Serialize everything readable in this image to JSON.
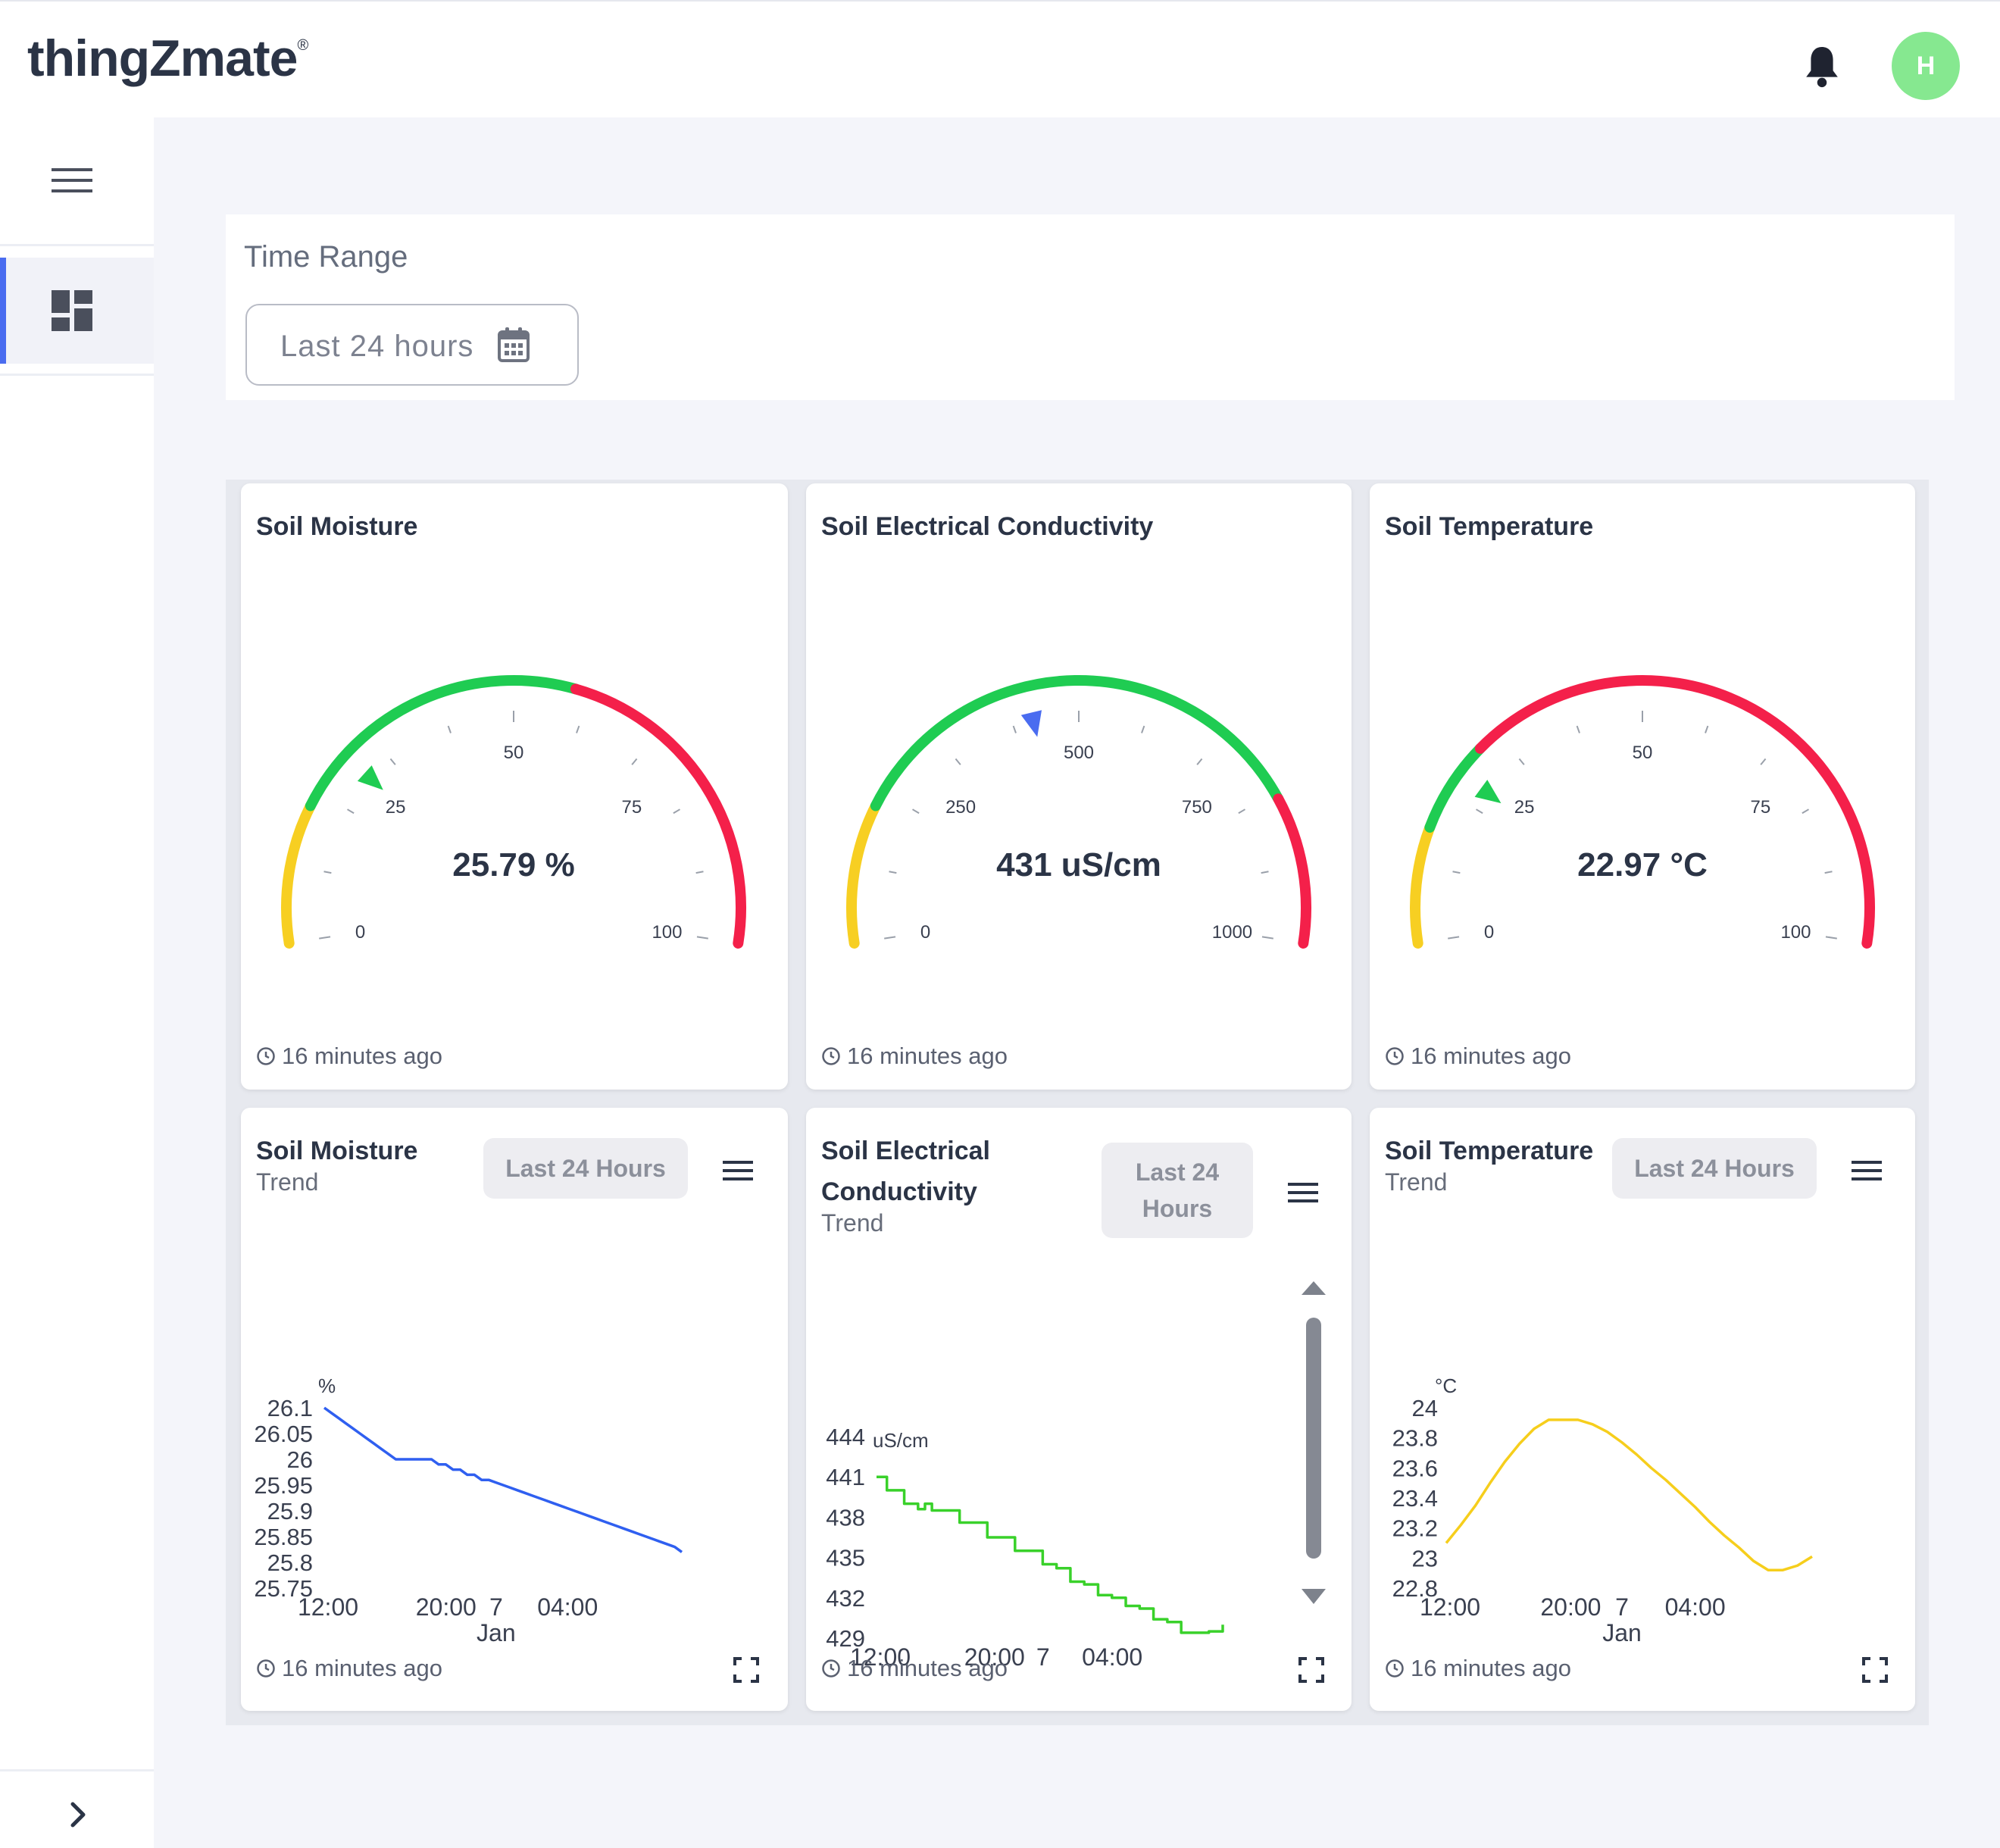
{
  "header": {
    "logo": "thingZmate",
    "logo_mark": "®",
    "avatar_initial": "H"
  },
  "sidebar": {
    "items": [
      {
        "icon": "hamburger-menu-icon"
      },
      {
        "icon": "dashboard-grid-icon",
        "active": true
      },
      {
        "icon": "chevron-right-icon"
      }
    ]
  },
  "filter": {
    "label": "Time Range",
    "value": "Last 24 hours"
  },
  "colors": {
    "accent": "#4a6cf0",
    "gauge_yellow": "#f7cf22",
    "gauge_green": "#1fcc52",
    "gauge_red": "#f4204a",
    "moisture_line": "#2f5ff0",
    "ec_line": "#39d12a",
    "temp_line": "#f6ce1c"
  },
  "gauges": [
    {
      "title": "Soil Moisture",
      "value": 25.79,
      "value_text": "25.79 %",
      "min": 0,
      "max": 100,
      "ticks": [
        "0",
        "25",
        "50",
        "75",
        "100"
      ],
      "bands": [
        {
          "from": 0,
          "to": 18,
          "color": "#f7cf22"
        },
        {
          "from": 18,
          "to": 58,
          "color": "#1fcc52"
        },
        {
          "from": 58,
          "to": 100,
          "color": "#f4204a"
        }
      ],
      "pointer_color": "#1fcc52",
      "time": "16 minutes ago"
    },
    {
      "title": "Soil Electrical Conductivity",
      "value": 431,
      "value_text": "431 uS/cm",
      "min": 0,
      "max": 1000,
      "ticks": [
        "0",
        "250",
        "500",
        "750",
        "1000"
      ],
      "bands": [
        {
          "from": 0,
          "to": 180,
          "color": "#f7cf22"
        },
        {
          "from": 180,
          "to": 810,
          "color": "#1fcc52"
        },
        {
          "from": 810,
          "to": 1000,
          "color": "#f4204a"
        }
      ],
      "pointer_color": "#4a6cf0",
      "time": "16 minutes ago"
    },
    {
      "title": "Soil Temperature",
      "value": 22.97,
      "value_text": "22.97 °C",
      "min": 0,
      "max": 100,
      "ticks": [
        "0",
        "25",
        "50",
        "75",
        "100"
      ],
      "bands": [
        {
          "from": 0,
          "to": 15,
          "color": "#f7cf22"
        },
        {
          "from": 15,
          "to": 27,
          "color": "#1fcc52"
        },
        {
          "from": 27,
          "to": 100,
          "color": "#f4204a"
        }
      ],
      "pointer_color": "#1fcc52",
      "time": "16 minutes ago"
    }
  ],
  "trends": [
    {
      "title": "Soil Moisture",
      "subtitle": "Trend",
      "range": "Last 24 Hours",
      "time": "16 minutes ago"
    },
    {
      "title": "Soil Electrical Conductivity",
      "subtitle": "Trend",
      "range": "Last 24 Hours",
      "time": "16 minutes ago"
    },
    {
      "title": "Soil Temperature",
      "subtitle": "Trend",
      "range": "Last 24 Hours",
      "time": "16 minutes ago"
    }
  ],
  "chart_data": [
    {
      "type": "line",
      "title": "",
      "ylabel": "%",
      "ylim": [
        25.75,
        26.1
      ],
      "yticks": [
        "26.1",
        "26.05",
        "26",
        "25.95",
        "25.9",
        "25.85",
        "25.8",
        "25.75"
      ],
      "xticks": [
        "12:00",
        "20:00",
        "7",
        "04:00"
      ],
      "xticks_sub": [
        "",
        "",
        "Jan",
        ""
      ],
      "color": "#2f5ff0",
      "series": [
        {
          "x": [
            0,
            0.02,
            0.04,
            0.06,
            0.08,
            0.1,
            0.12,
            0.14,
            0.16,
            0.18,
            0.2,
            0.22,
            0.24,
            0.26,
            0.28,
            0.3,
            0.32,
            0.34,
            0.36,
            0.38,
            0.4,
            0.42,
            0.44,
            0.46,
            0.48,
            0.5,
            0.52,
            0.54,
            0.56,
            0.58,
            0.6,
            0.62,
            0.64,
            0.66,
            0.68,
            0.7,
            0.72,
            0.74,
            0.76,
            0.78,
            0.8,
            0.82,
            0.84,
            0.86,
            0.88,
            0.9,
            0.92,
            0.94,
            0.96,
            0.98,
            1.0
          ],
          "values": [
            26.1,
            26.09,
            26.08,
            26.07,
            26.06,
            26.05,
            26.04,
            26.03,
            26.02,
            26.01,
            26.0,
            26.0,
            26.0,
            26.0,
            26.0,
            26.0,
            25.99,
            25.99,
            25.98,
            25.98,
            25.97,
            25.97,
            25.96,
            25.96,
            25.955,
            25.95,
            25.945,
            25.94,
            25.935,
            25.93,
            25.925,
            25.92,
            25.915,
            25.91,
            25.905,
            25.9,
            25.895,
            25.89,
            25.885,
            25.88,
            25.875,
            25.87,
            25.865,
            25.86,
            25.855,
            25.85,
            25.845,
            25.84,
            25.835,
            25.83,
            25.82
          ]
        }
      ]
    },
    {
      "type": "line",
      "title": "",
      "ylabel": "uS/cm",
      "ylim": [
        429,
        444
      ],
      "yticks": [
        "444",
        "441",
        "438",
        "435",
        "432",
        "429"
      ],
      "xticks": [
        "12:00",
        "20:00",
        "7",
        "04:00"
      ],
      "color": "#39d12a",
      "series": [
        {
          "x": [
            0,
            0.03,
            0.05,
            0.08,
            0.1,
            0.12,
            0.14,
            0.16,
            0.2,
            0.24,
            0.28,
            0.32,
            0.36,
            0.4,
            0.44,
            0.48,
            0.52,
            0.56,
            0.6,
            0.64,
            0.68,
            0.72,
            0.76,
            0.8,
            0.84,
            0.88,
            0.92,
            0.96,
            1.0
          ],
          "values": [
            441,
            440,
            440,
            439,
            439,
            438.6,
            439,
            438.5,
            438.5,
            437.6,
            437.6,
            436.5,
            436.5,
            435.5,
            435.5,
            434.5,
            434.2,
            433.2,
            433,
            432.2,
            432,
            431.4,
            431.2,
            430.4,
            430.2,
            429.4,
            429.4,
            429.5,
            430
          ]
        }
      ]
    },
    {
      "type": "line",
      "title": "",
      "ylabel": "°C",
      "ylim": [
        22.8,
        24
      ],
      "yticks": [
        "24",
        "23.8",
        "23.6",
        "23.4",
        "23.2",
        "23",
        "22.8"
      ],
      "xticks": [
        "12:00",
        "20:00",
        "7",
        "04:00"
      ],
      "xticks_sub": [
        "",
        "",
        "Jan",
        ""
      ],
      "color": "#f6ce1c",
      "series": [
        {
          "x": [
            0,
            0.04,
            0.08,
            0.12,
            0.16,
            0.2,
            0.24,
            0.28,
            0.32,
            0.36,
            0.4,
            0.44,
            0.48,
            0.52,
            0.56,
            0.6,
            0.64,
            0.68,
            0.72,
            0.76,
            0.8,
            0.84,
            0.88,
            0.92,
            0.96,
            1.0
          ],
          "values": [
            23.1,
            23.22,
            23.35,
            23.5,
            23.64,
            23.76,
            23.86,
            23.92,
            23.92,
            23.92,
            23.89,
            23.84,
            23.77,
            23.69,
            23.6,
            23.52,
            23.43,
            23.34,
            23.24,
            23.15,
            23.07,
            22.98,
            22.92,
            22.92,
            22.95,
            23.01
          ]
        }
      ]
    }
  ]
}
